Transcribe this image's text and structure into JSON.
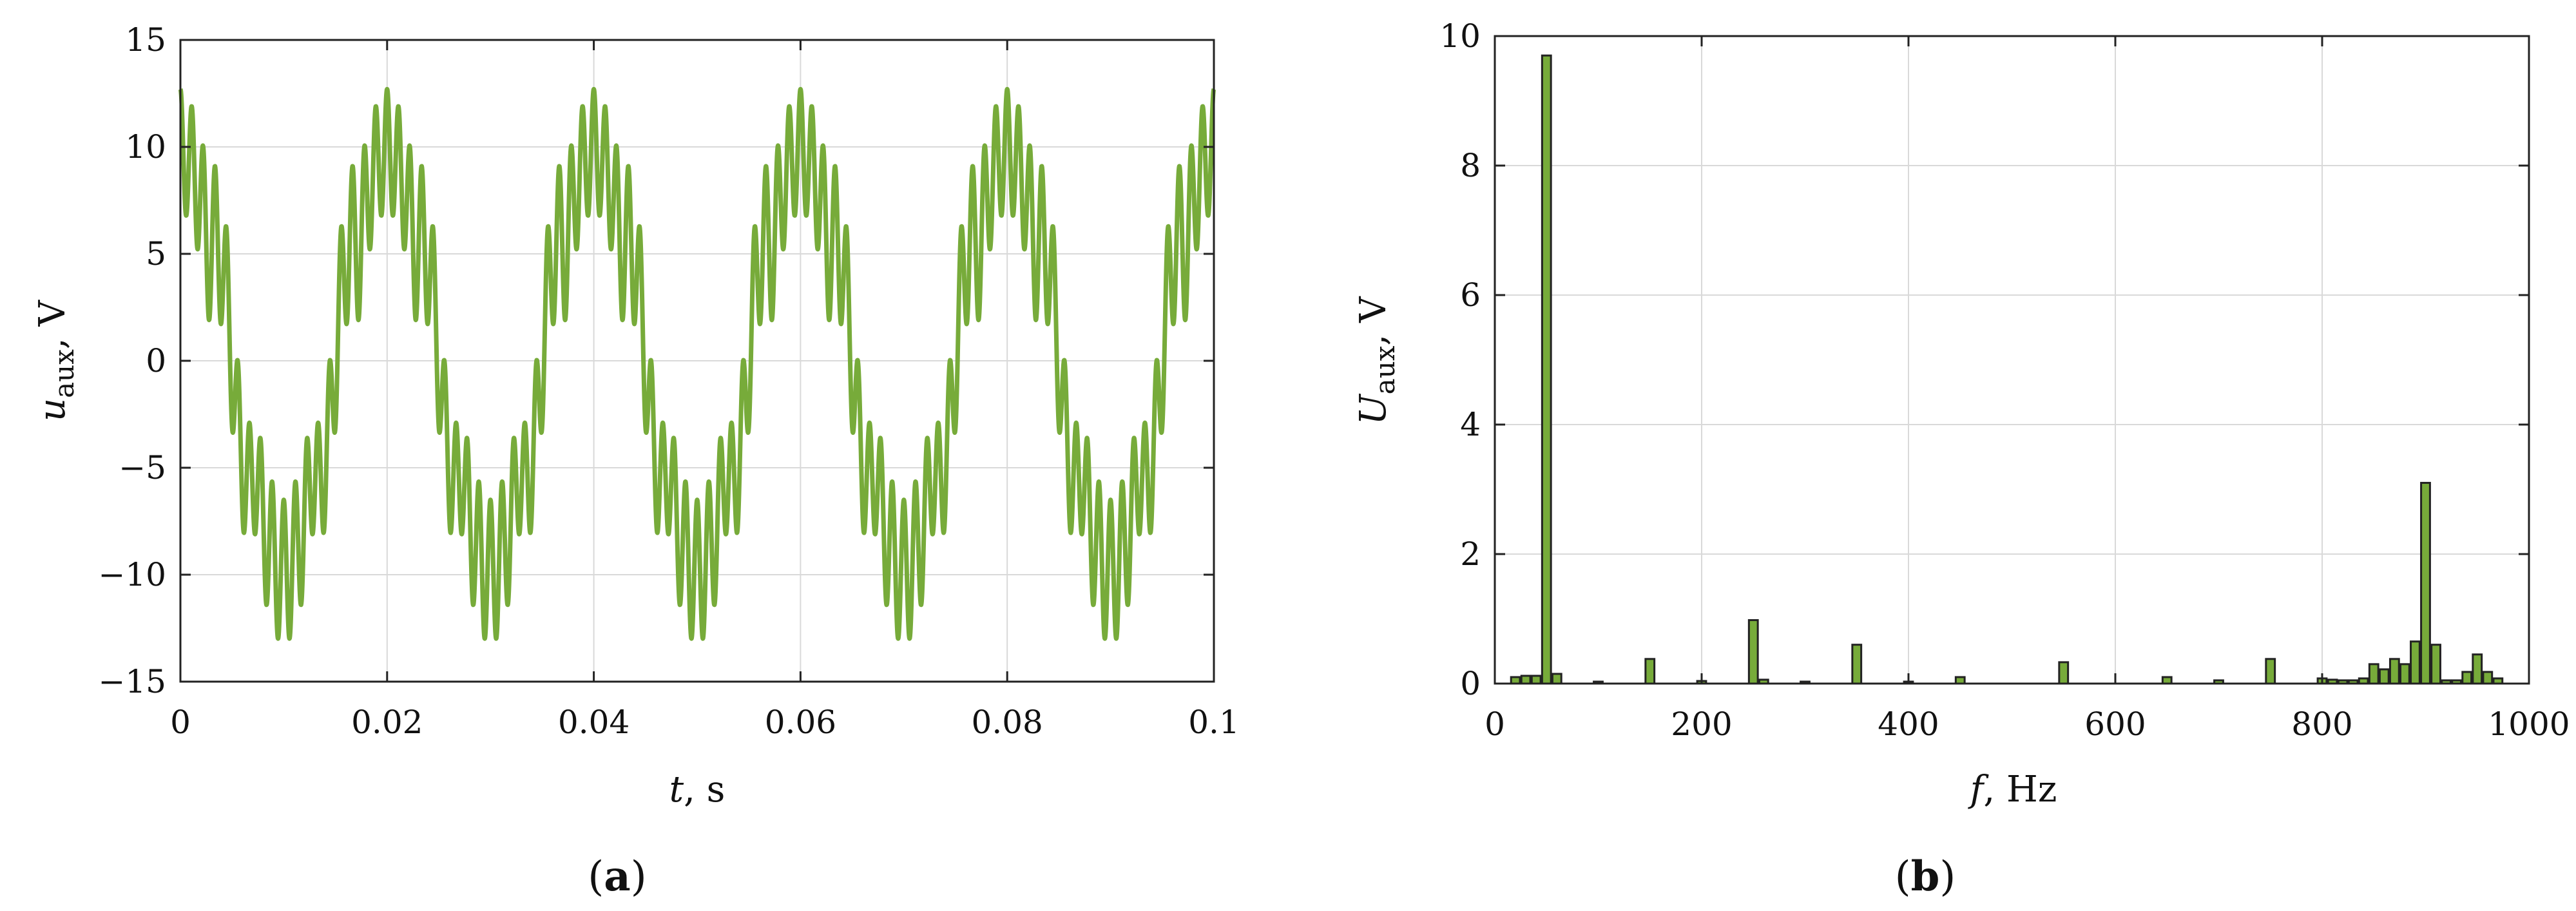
{
  "chart_data": [
    {
      "panel_label": "(a)",
      "panel_letter": "a",
      "type": "line",
      "xlabel": {
        "symbol": "t",
        "unit": ", s"
      },
      "ylabel": {
        "symbol": "u",
        "subscript": "aux",
        "unit": ", V"
      },
      "xlim": [
        0,
        0.1
      ],
      "ylim": [
        -15,
        15
      ],
      "xticks": [
        0,
        0.02,
        0.04,
        0.06,
        0.08,
        0.1
      ],
      "xtick_labels": [
        "0",
        "0.02",
        "0.04",
        "0.06",
        "0.08",
        "0.1"
      ],
      "yticks": [
        -15,
        -10,
        -5,
        0,
        5,
        10,
        15
      ],
      "ytick_labels": [
        "−15",
        "−10",
        "−5",
        "0",
        "5",
        "10",
        "15"
      ],
      "grid": true,
      "series": [
        {
          "color": "#77ab3a",
          "components": [
            {
              "frequency_hz": 50,
              "amplitude": 9.7,
              "phase_deg": 90
            },
            {
              "frequency_hz": 150,
              "amplitude": 0.4,
              "phase_deg": -90
            },
            {
              "frequency_hz": 250,
              "amplitude": 1.0,
              "phase_deg": 90
            },
            {
              "frequency_hz": 350,
              "amplitude": 0.6,
              "phase_deg": -90
            },
            {
              "frequency_hz": 550,
              "amplitude": 0.3,
              "phase_deg": 90
            },
            {
              "frequency_hz": 750,
              "amplitude": 0.4,
              "phase_deg": -90
            },
            {
              "frequency_hz": 900,
              "amplitude": 3.1,
              "phase_deg": 90
            }
          ]
        }
      ]
    },
    {
      "panel_label": "(b)",
      "panel_letter": "b",
      "type": "bar",
      "xlabel": {
        "symbol": "f",
        "unit": ", Hz"
      },
      "ylabel": {
        "symbol": "U",
        "subscript": "aux",
        "unit": ", V"
      },
      "xlim": [
        0,
        1000
      ],
      "ylim": [
        0,
        10
      ],
      "xticks": [
        0,
        200,
        400,
        600,
        800,
        1000
      ],
      "xtick_labels": [
        "0",
        "200",
        "400",
        "600",
        "800",
        "1000"
      ],
      "yticks": [
        0,
        2,
        4,
        6,
        8,
        10
      ],
      "ytick_labels": [
        "0",
        "2",
        "4",
        "6",
        "8",
        "10"
      ],
      "grid": true,
      "bar_color": "#77ab3a",
      "bar_edge_color": "#222222",
      "x": [
        20,
        30,
        40,
        50,
        60,
        100,
        150,
        200,
        250,
        260,
        300,
        350,
        400,
        450,
        550,
        650,
        700,
        750,
        800,
        810,
        820,
        830,
        840,
        850,
        860,
        870,
        880,
        890,
        900,
        910,
        920,
        930,
        940,
        950,
        960,
        970
      ],
      "values": [
        0.1,
        0.12,
        0.12,
        9.7,
        0.15,
        0.03,
        0.38,
        0.04,
        0.98,
        0.06,
        0.03,
        0.6,
        0.03,
        0.1,
        0.33,
        0.1,
        0.05,
        0.38,
        0.08,
        0.06,
        0.05,
        0.05,
        0.08,
        0.3,
        0.22,
        0.38,
        0.3,
        0.65,
        3.1,
        0.6,
        0.05,
        0.05,
        0.18,
        0.45,
        0.18,
        0.08
      ]
    }
  ]
}
